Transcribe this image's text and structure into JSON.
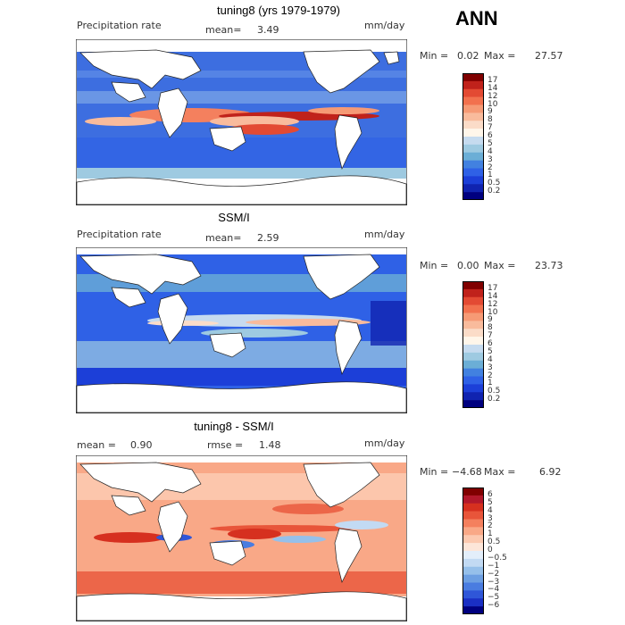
{
  "season": "ANN",
  "panels": [
    {
      "title": "tuning8 (yrs 1979-1979)",
      "left_label": "Precipitation rate",
      "mid_label": "mean=",
      "mid_value": "3.49",
      "units": "mm/day",
      "min_label": "Min =",
      "min_value": "0.02",
      "max_label": "Max =",
      "max_value": "27.57",
      "colorbar": {
        "levels": [
          "17",
          "14",
          "12",
          "10",
          "9",
          "8",
          "7",
          "6",
          "5",
          "4",
          "3",
          "2",
          "1",
          "0.5",
          "0.2"
        ],
        "colors": [
          "#800000",
          "#c0221b",
          "#e34a33",
          "#f2714e",
          "#f69a75",
          "#f9bb9c",
          "#fbdcc8",
          "#fff6ea",
          "#c6dbef",
          "#9ecae1",
          "#6baed6",
          "#4281e0",
          "#2f61e6",
          "#1c3fd8",
          "#1023b0",
          "#00007f"
        ]
      }
    },
    {
      "title": "SSM/I",
      "left_label": "Precipitation rate",
      "mid_label": "mean=",
      "mid_value": "2.59",
      "units": "mm/day",
      "min_label": "Min =",
      "min_value": "0.00",
      "max_label": "Max =",
      "max_value": "23.73",
      "colorbar": {
        "levels": [
          "17",
          "14",
          "12",
          "10",
          "9",
          "8",
          "7",
          "6",
          "5",
          "4",
          "3",
          "2",
          "1",
          "0.5",
          "0.2"
        ],
        "colors": [
          "#800000",
          "#c0221b",
          "#e34a33",
          "#f2714e",
          "#f69a75",
          "#f9bb9c",
          "#fbdcc8",
          "#fff6ea",
          "#c6dbef",
          "#9ecae1",
          "#6baed6",
          "#4281e0",
          "#2f61e6",
          "#1c3fd8",
          "#1023b0",
          "#00007f"
        ]
      }
    },
    {
      "title": "tuning8 - SSM/I",
      "left_label": "mean =",
      "left_value": "0.90",
      "mid_label": "rmse =",
      "mid_value": "1.48",
      "units": "mm/day",
      "min_label": "Min =",
      "min_value": "−4.68",
      "max_label": "Max =",
      "max_value": "6.92",
      "colorbar": {
        "levels": [
          "6",
          "5",
          "4",
          "3",
          "2",
          "1",
          "0.5",
          "0",
          "−0.5",
          "−1",
          "−2",
          "−3",
          "−4",
          "−5",
          "−6"
        ],
        "colors": [
          "#800000",
          "#b2182b",
          "#d6301f",
          "#e8553a",
          "#f4805e",
          "#f9a887",
          "#fcc9b0",
          "#fde6d9",
          "#e3eefa",
          "#c2daf3",
          "#96c0ea",
          "#6d9fe2",
          "#4a7ce0",
          "#2f56d8",
          "#1a2fc4",
          "#00007f"
        ]
      }
    }
  ]
}
